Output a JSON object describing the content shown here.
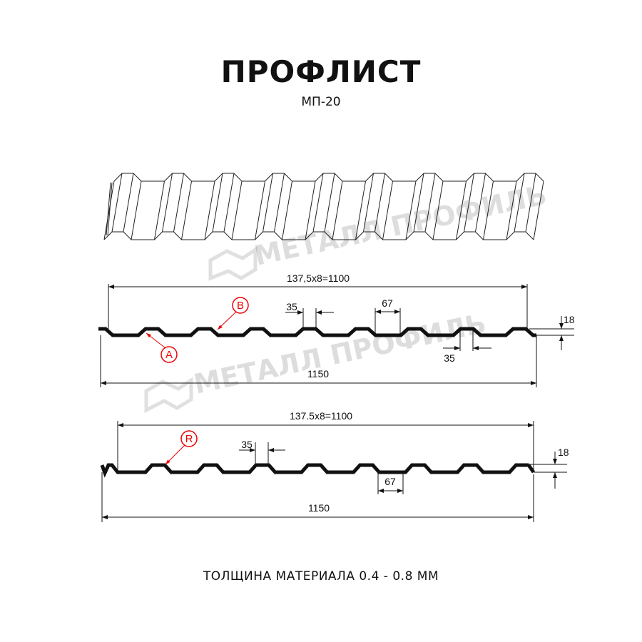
{
  "header": {
    "title": "ПРОФЛИСТ",
    "subtitle": "МП-20"
  },
  "footer": {
    "text": "ТОЛЩИНА МАТЕРИАЛА 0.4 - 0.8 ММ"
  },
  "watermark": {
    "text": "МЕТАЛЛ ПРОФИЛЬ",
    "color": "#cfcfcf"
  },
  "profile_a": {
    "pitch_dim": "137,5x8=1100",
    "width_dim": "1150",
    "top_dim": "35",
    "valley_dim": "67",
    "height_dim": "18",
    "bottom_dim": "35",
    "marks": [
      "A",
      "B"
    ]
  },
  "profile_b": {
    "pitch_dim": "137.5x8=1100",
    "width_dim": "1150",
    "top_dim": "35",
    "valley_dim": "67",
    "height_dim": "18",
    "marks": [
      "R"
    ]
  },
  "colors": {
    "line": "#111111",
    "mark": "#e00000"
  }
}
